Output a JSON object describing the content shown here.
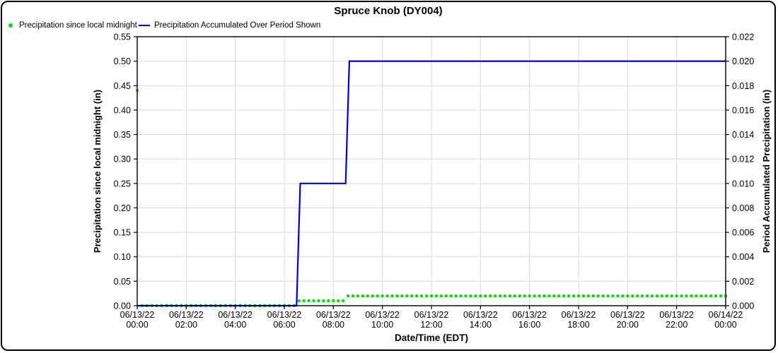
{
  "title": "Spruce Knob (DY004)",
  "legend": [
    {
      "label": "Precipitation since local midnight",
      "marker": "dot",
      "color": "#00dd00"
    },
    {
      "label": "Precipitation Accumulated Over Period Shown",
      "marker": "line",
      "color": "#0000dd"
    }
  ],
  "colors": {
    "green": "#00dd00",
    "blue": "#0000dd",
    "grid": "#d9d9d9",
    "axis": "#000000",
    "background": "#ffffff"
  },
  "chart_data": {
    "type": "line",
    "title": "Spruce Knob (DY004)",
    "grid": true,
    "legend_position": "top-left",
    "x_axis": {
      "label": "Date/Time (EDT)",
      "unit": "hours since 06/13/22 00:00 EDT",
      "range_hours": [
        0,
        24
      ],
      "tick_step_hours": 2,
      "ticks": [
        {
          "date": "06/13/22",
          "time": "00:00"
        },
        {
          "date": "06/13/22",
          "time": "02:00"
        },
        {
          "date": "06/13/22",
          "time": "04:00"
        },
        {
          "date": "06/13/22",
          "time": "06:00"
        },
        {
          "date": "06/13/22",
          "time": "08:00"
        },
        {
          "date": "06/13/22",
          "time": "10:00"
        },
        {
          "date": "06/13/22",
          "time": "12:00"
        },
        {
          "date": "06/13/22",
          "time": "14:00"
        },
        {
          "date": "06/13/22",
          "time": "16:00"
        },
        {
          "date": "06/13/22",
          "time": "18:00"
        },
        {
          "date": "06/13/22",
          "time": "20:00"
        },
        {
          "date": "06/13/22",
          "time": "22:00"
        },
        {
          "date": "06/14/22",
          "time": "00:00"
        }
      ]
    },
    "y_left": {
      "label": "Precipitation since local midnight (in)",
      "min": 0.0,
      "max": 0.55,
      "tick_step": 0.05,
      "tick_labels": [
        "0.00",
        "0.05",
        "0.10",
        "0.15",
        "0.20",
        "0.25",
        "0.30",
        "0.35",
        "0.40",
        "0.45",
        "0.50",
        "0.55"
      ]
    },
    "y_right": {
      "label": "Period Accumulated Precipitation (in)",
      "min": 0.0,
      "max": 0.022,
      "tick_step": 0.002,
      "tick_labels": [
        "0.000",
        "0.002",
        "0.004",
        "0.006",
        "0.008",
        "0.010",
        "0.012",
        "0.014",
        "0.016",
        "0.018",
        "0.020",
        "0.022"
      ]
    },
    "series": [
      {
        "name": "Precipitation since local midnight",
        "style": "scatter",
        "axis": "left",
        "color": "#00dd00",
        "interval_minutes": 12,
        "segments": [
          {
            "start_hour": 0.0,
            "end_hour": 0.0,
            "value": 0.44
          },
          {
            "start_hour": 0.2,
            "end_hour": 6.4,
            "value": 0.0
          },
          {
            "start_hour": 6.6,
            "end_hour": 8.4,
            "value": 0.01
          },
          {
            "start_hour": 8.6,
            "end_hour": 24.0,
            "value": 0.02
          }
        ]
      },
      {
        "name": "Precipitation Accumulated Over Period Shown",
        "style": "line",
        "axis": "right",
        "color": "#0000dd",
        "points": [
          {
            "hour": 0.0,
            "value": 0.0
          },
          {
            "hour": 6.5,
            "value": 0.0
          },
          {
            "hour": 6.65,
            "value": 0.01
          },
          {
            "hour": 8.5,
            "value": 0.01
          },
          {
            "hour": 8.65,
            "value": 0.02
          },
          {
            "hour": 24.0,
            "value": 0.02
          }
        ]
      }
    ]
  }
}
